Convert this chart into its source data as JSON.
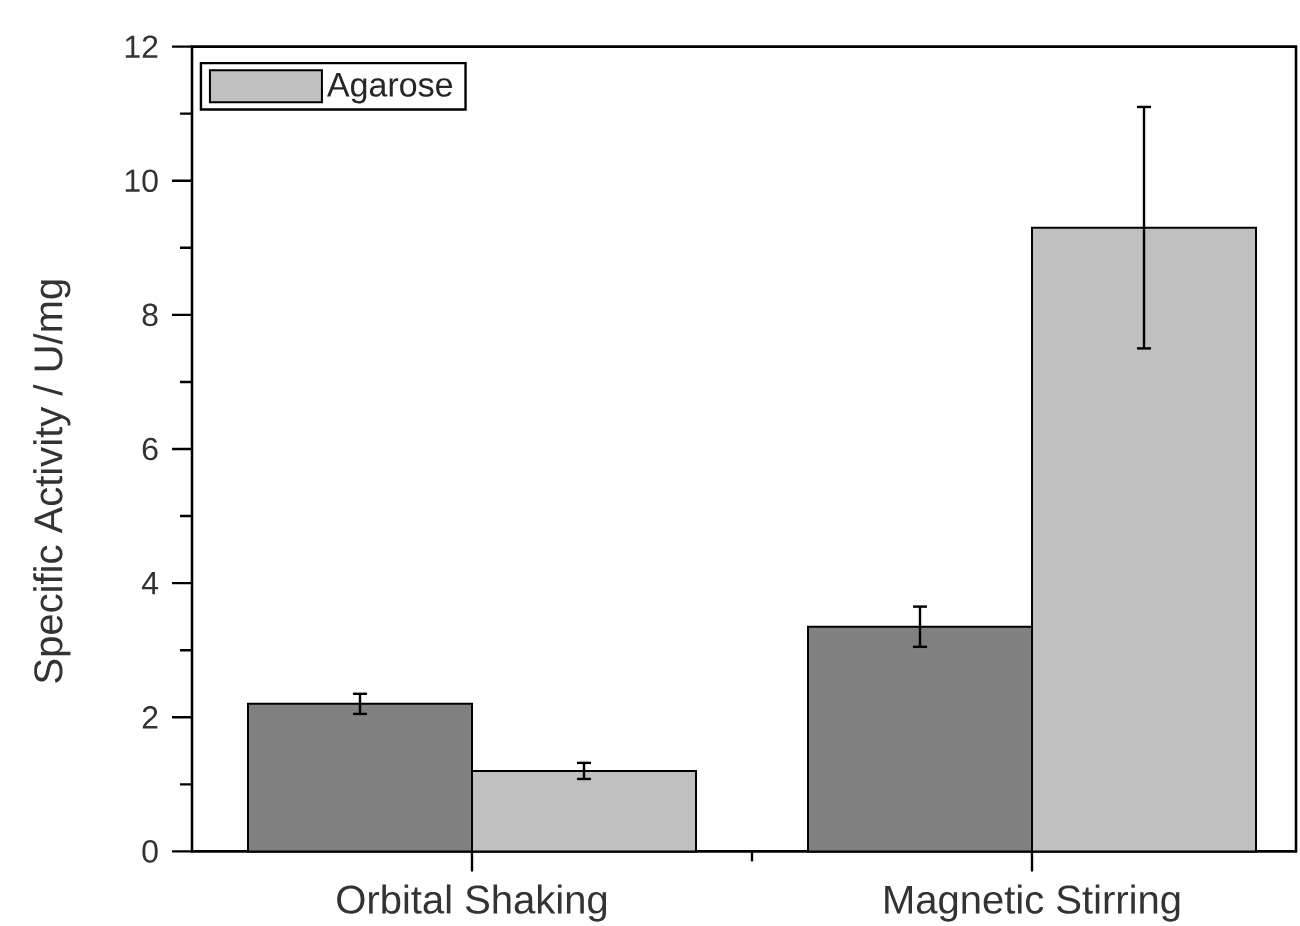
{
  "chart_data": {
    "type": "bar",
    "ylabel": "Specific Activity / U/mg",
    "categories": [
      "Orbital Shaking",
      "Magnetic Stirring"
    ],
    "series": [
      {
        "color": "#808080",
        "values": [
          2.2,
          3.35
        ],
        "errors": [
          0.15,
          0.3
        ]
      },
      {
        "name": "Agarose",
        "color": "#c0c0c0",
        "values": [
          1.2,
          9.3
        ],
        "errors": [
          0.12,
          1.8
        ]
      }
    ],
    "ylim": [
      0,
      12
    ],
    "yticks": [
      0,
      {
        "value": 1,
        "label": null
      },
      2,
      {
        "value": 3,
        "label": null
      },
      4,
      {
        "value": 5,
        "label": null
      },
      6,
      {
        "value": 7,
        "label": null
      },
      8,
      {
        "value": 9,
        "label": null
      },
      10,
      {
        "value": 11,
        "label": null
      },
      12
    ],
    "legend": "top left",
    "grid": false
  }
}
